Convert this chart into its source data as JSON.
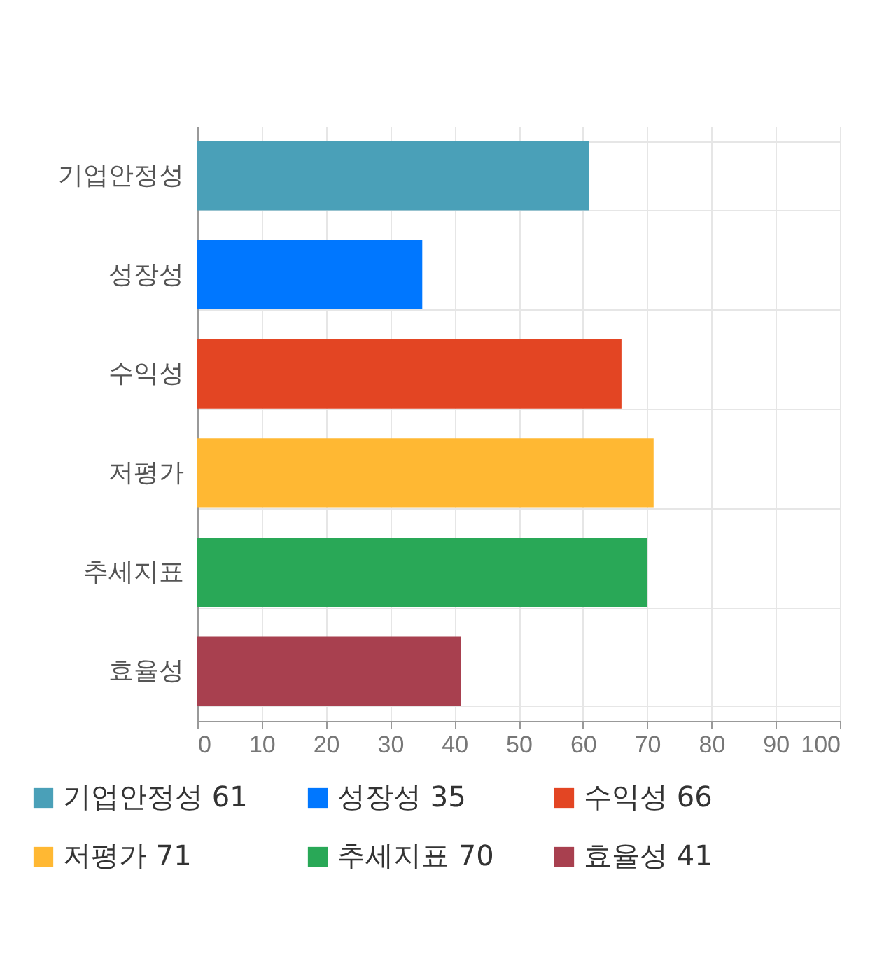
{
  "chart_data": {
    "type": "bar",
    "orientation": "horizontal",
    "categories": [
      "기업안정성",
      "성장성",
      "수익성",
      "저평가",
      "추세지표",
      "효율성"
    ],
    "series": [
      {
        "name": "기업안정성 61",
        "color": "#4aa0b8",
        "values": [
          61,
          null,
          null,
          null,
          null,
          null
        ]
      },
      {
        "name": "성장성 35",
        "color": "#0077ff",
        "values": [
          null,
          35,
          null,
          null,
          null,
          null
        ]
      },
      {
        "name": "수익성 66",
        "color": "#e34523",
        "values": [
          null,
          null,
          66,
          null,
          null,
          null
        ]
      },
      {
        "name": "저평가 71",
        "color": "#ffb833",
        "values": [
          null,
          null,
          null,
          71,
          null,
          null
        ]
      },
      {
        "name": "추세지표 70",
        "color": "#29a857",
        "values": [
          null,
          null,
          null,
          null,
          70,
          null
        ]
      },
      {
        "name": "효율성 41",
        "color": "#a8404f",
        "values": [
          null,
          null,
          null,
          null,
          null,
          41
        ]
      }
    ],
    "xlim": [
      0,
      100
    ],
    "xticks": [
      0,
      10,
      20,
      30,
      40,
      50,
      60,
      70,
      80,
      90,
      100
    ],
    "grid": true,
    "legend": "bottom"
  }
}
